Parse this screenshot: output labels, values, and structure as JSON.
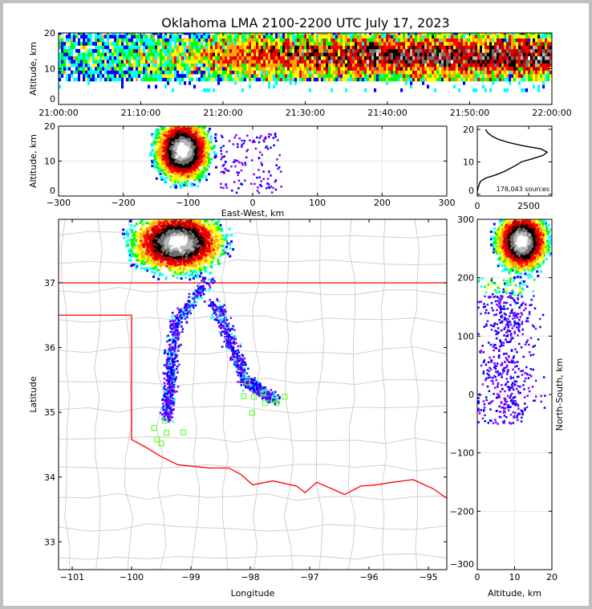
{
  "chart_data": {
    "type": "heatmap",
    "title": "Oklahoma LMA 2100-2200 UTC July 17, 2023",
    "annotation": "178,043 sources",
    "colormap": [
      "#0000ff",
      "#00ffff",
      "#00ff00",
      "#ffff00",
      "#ffa500",
      "#ff0000",
      "#b40000",
      "#000000",
      "#707070",
      "#b8b8b8",
      "#ffffff"
    ],
    "panels": [
      {
        "key": "time",
        "xlabel": "",
        "ylabel": "Altitude, km",
        "xlim": [
          0,
          60
        ],
        "ylim": [
          0,
          20
        ],
        "xticks": [
          0,
          10,
          20,
          30,
          40,
          50,
          60
        ],
        "xticklabels": [
          "21:00:00",
          "21:10:00",
          "21:20:00",
          "21:30:00",
          "21:40:00",
          "21:50:00",
          "22:00:00"
        ],
        "yticks": [
          0,
          10,
          20
        ],
        "yticklabels": [
          "0",
          "10",
          "20"
        ],
        "grid": false
      },
      {
        "key": "ew",
        "xlabel": "East-West, km",
        "ylabel": "Altitude, km",
        "xlim": [
          -300,
          300
        ],
        "ylim": [
          0,
          20
        ],
        "xticks": [
          -300,
          -200,
          -100,
          0,
          100,
          200,
          300
        ],
        "xticklabels": [
          "−300",
          "−200",
          "−100",
          "0",
          "100",
          "200",
          "300"
        ],
        "yticks": [
          0,
          10,
          20
        ],
        "yticklabels": [
          "0",
          "10",
          "20"
        ],
        "grid": true
      },
      {
        "key": "hist",
        "xlabel": "",
        "ylabel": "",
        "xlim": [
          0,
          3630
        ],
        "ylim": [
          -0.5,
          21
        ],
        "xticks": [
          0,
          2500
        ],
        "xticklabels": [
          "0",
          "2500"
        ],
        "yticks": [
          0,
          10,
          20
        ],
        "yticklabels": [
          "0",
          "10",
          "20"
        ],
        "grid": false
      },
      {
        "key": "plan",
        "xlabel": "Longitude",
        "ylabel": "Latitude",
        "xlim": [
          -101.23,
          -94.69
        ],
        "ylim": [
          32.57,
          37.98
        ],
        "xticks": [
          -101,
          -100,
          -99,
          -98,
          -97,
          -96,
          -95
        ],
        "xticklabels": [
          "−101",
          "−100",
          "−99",
          "−98",
          "−97",
          "−96",
          "−95"
        ],
        "yticks": [
          33,
          34,
          35,
          36,
          37
        ],
        "yticklabels": [
          "33",
          "34",
          "35",
          "36",
          "37"
        ],
        "grid": false
      },
      {
        "key": "ns",
        "xlabel": "Altitude, km",
        "ylabel": "North-South, km",
        "xlim": [
          0,
          20
        ],
        "ylim": [
          -300,
          300
        ],
        "xticks": [
          0,
          10,
          20
        ],
        "xticklabels": [
          "0",
          "10",
          "20"
        ],
        "yticks": [
          -300,
          -200,
          -100,
          0,
          100,
          200,
          300
        ],
        "yticklabels": [
          "−300",
          "−200",
          "−100",
          "0",
          "100",
          "200",
          "300"
        ],
        "grid": true
      }
    ],
    "altitude_histogram": {
      "altitude_km": [
        0,
        1,
        2,
        3,
        4,
        5,
        6,
        7,
        8,
        9,
        10,
        11,
        12,
        13,
        14,
        15,
        16,
        17,
        18,
        19,
        20
      ],
      "counts": [
        0,
        0,
        40,
        90,
        150,
        400,
        900,
        1300,
        1600,
        1900,
        2150,
        2700,
        3200,
        3400,
        3100,
        2200,
        1500,
        1000,
        700,
        500,
        400
      ]
    },
    "density_cores": [
      {
        "panel": "ew",
        "center": [
          -108,
          13
        ],
        "spread": [
          20,
          4.2
        ]
      },
      {
        "panel": "plan",
        "center": [
          -99.22,
          37.62
        ],
        "spread": [
          0.36,
          0.22
        ]
      },
      {
        "panel": "ns",
        "center": [
          12,
          262
        ],
        "spread": [
          3.2,
          24
        ]
      }
    ],
    "source_tracks": [
      {
        "panel": "plan",
        "path": [
          [
            -98.7,
            37.05
          ],
          [
            -99.25,
            36.4
          ],
          [
            -99.35,
            35.6
          ],
          [
            -99.4,
            34.9
          ]
        ],
        "spread": 0.09
      },
      {
        "panel": "plan",
        "path": [
          [
            -98.6,
            36.7
          ],
          [
            -98.1,
            35.5
          ],
          [
            -97.6,
            35.2
          ]
        ],
        "spread": 0.1
      }
    ],
    "state_boundaries": [
      [
        [
          -101.23,
          37.0
        ],
        [
          -94.69,
          37.0
        ]
      ],
      [
        [
          -101.23,
          36.5
        ],
        [
          -100.0,
          36.5
        ],
        [
          -100.0,
          34.58
        ],
        [
          -99.78,
          34.47
        ],
        [
          -99.51,
          34.32
        ],
        [
          -99.22,
          34.19
        ],
        [
          -98.7,
          34.14
        ],
        [
          -98.36,
          34.14
        ],
        [
          -98.16,
          34.04
        ],
        [
          -97.96,
          33.88
        ],
        [
          -97.62,
          33.94
        ],
        [
          -97.22,
          33.86
        ],
        [
          -97.08,
          33.76
        ],
        [
          -96.88,
          33.92
        ],
        [
          -96.41,
          33.73
        ],
        [
          -96.14,
          33.86
        ],
        [
          -95.87,
          33.88
        ],
        [
          -95.6,
          33.92
        ],
        [
          -95.26,
          33.96
        ],
        [
          -94.92,
          33.82
        ],
        [
          -94.69,
          33.67
        ]
      ]
    ],
    "stations": [
      [
        -99.62,
        34.76
      ],
      [
        -99.44,
        34.87
      ],
      [
        -99.41,
        34.68
      ],
      [
        -99.57,
        34.58
      ],
      [
        -99.5,
        34.52
      ],
      [
        -99.13,
        34.69
      ],
      [
        -98.05,
        35.46
      ],
      [
        -98.11,
        35.25
      ],
      [
        -97.94,
        35.24
      ],
      [
        -97.97,
        34.99
      ],
      [
        -97.75,
        35.14
      ],
      [
        -97.56,
        35.14
      ],
      [
        -97.42,
        35.24
      ],
      [
        -97.6,
        35.19
      ],
      [
        -97.78,
        35.29
      ]
    ]
  }
}
